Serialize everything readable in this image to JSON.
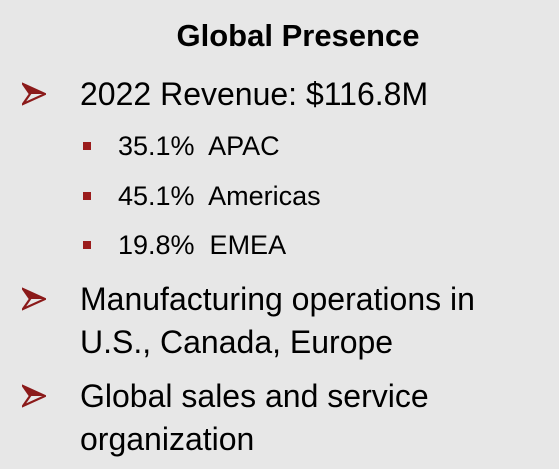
{
  "title": "Global Presence",
  "bullets": [
    {
      "text": "2022 Revenue: $116.8M",
      "items": [
        "35.1%  APAC",
        "45.1%  Americas",
        "19.8%  EMEA"
      ]
    },
    {
      "text": "Manufacturing operations in U.S., Canada, Europe"
    },
    {
      "text": "Global sales and service organization"
    }
  ]
}
